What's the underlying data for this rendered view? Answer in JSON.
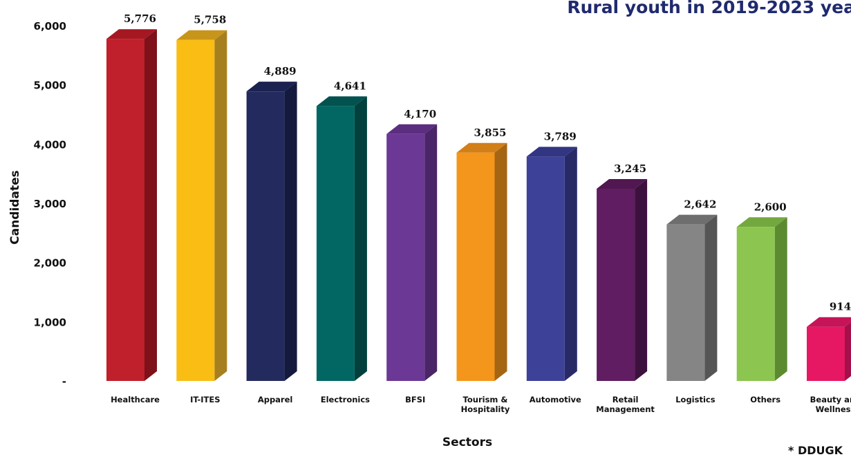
{
  "title": "Rural youth in 2019-2023 yea",
  "footnote": "* DDUGK",
  "chart_data": {
    "type": "bar",
    "title": "Rural youth in 2019-2023 yea",
    "xlabel": "Sectors",
    "ylabel": "Candidates",
    "ylim": [
      0,
      6000
    ],
    "yticks": [
      0,
      1000,
      2000,
      3000,
      4000,
      5000,
      6000
    ],
    "ytick_labels": [
      "-",
      "1,000",
      "2,000",
      "3,000",
      "4,000",
      "5,000",
      "6,000"
    ],
    "grid": false,
    "legend": "none",
    "categories": [
      [
        "Healthcare"
      ],
      [
        "IT-ITES"
      ],
      [
        "Apparel"
      ],
      [
        "Electronics"
      ],
      [
        "BFSI"
      ],
      [
        "Tourism &",
        "Hospitality"
      ],
      [
        "Automotive"
      ],
      [
        "Retail",
        "Management"
      ],
      [
        "Logistics"
      ],
      [
        "Others"
      ],
      [
        "Beauty and",
        "Wellness"
      ]
    ],
    "values": [
      5776,
      5758,
      4889,
      4641,
      4170,
      3855,
      3789,
      3245,
      2642,
      2600,
      914
    ],
    "value_labels": [
      "5,776",
      "5,758",
      "4,889",
      "4,641",
      "4,170",
      "3,855",
      "3,789",
      "3,245",
      "2,642",
      "2,600",
      "914"
    ],
    "colors": [
      {
        "front": "#c0202b",
        "side": "#7e1119",
        "top": "#a51822"
      },
      {
        "front": "#f9bd14",
        "side": "#a67f1f",
        "top": "#c8951b"
      },
      {
        "front": "#232a5e",
        "side": "#141a3e",
        "top": "#1b2150"
      },
      {
        "front": "#026763",
        "side": "#01403d",
        "top": "#02524f"
      },
      {
        "front": "#6c3896",
        "side": "#4a2567",
        "top": "#5b2e80"
      },
      {
        "front": "#f4961c",
        "side": "#a56614",
        "top": "#d27f17"
      },
      {
        "front": "#3e4198",
        "side": "#282a68",
        "top": "#323582"
      },
      {
        "front": "#611d61",
        "side": "#3d113d",
        "top": "#501750"
      },
      {
        "front": "#858585",
        "side": "#555555",
        "top": "#6e6e6e"
      },
      {
        "front": "#8cc54f",
        "side": "#5c8a31",
        "top": "#73a83e"
      },
      {
        "front": "#e71863",
        "side": "#a4104a",
        "top": "#c51457"
      }
    ]
  }
}
